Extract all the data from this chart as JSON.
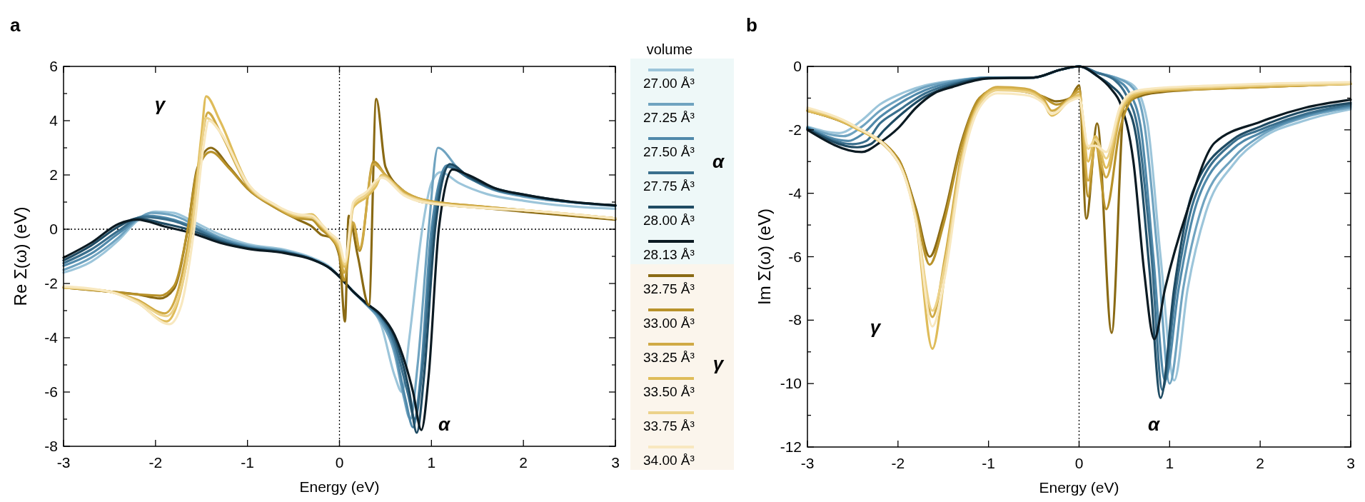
{
  "chart_data": [
    {
      "type": "line",
      "title": "a",
      "xlabel": "Energy (eV)",
      "ylabel": "Re Σ(ω) (eV)",
      "legend_title": "volume",
      "legend": "right",
      "line_style": "solid",
      "marker": "none",
      "grid": false,
      "xlim": [
        -3,
        3
      ],
      "xticks": [
        -3,
        -2,
        -1,
        0,
        1,
        2,
        3
      ],
      "ylim": [
        -8,
        6
      ],
      "yticks": [
        -8,
        {
          "value": -7,
          "label": null
        },
        -6,
        {
          "value": -5,
          "label": null
        },
        -4,
        {
          "value": -3,
          "label": null
        },
        -2,
        {
          "value": -1,
          "label": null
        },
        0,
        {
          "value": 1,
          "label": null
        },
        2,
        {
          "value": 3,
          "label": null
        },
        4,
        {
          "value": 5,
          "label": null
        },
        6
      ],
      "ref_lines": [
        {
          "axis": "x",
          "value": 0,
          "line_style": "dotted"
        },
        {
          "axis": "y",
          "value": 0,
          "line_style": "dotted"
        }
      ],
      "annotations": [
        "γ",
        "α",
        "α",
        "γ"
      ],
      "series": [
        {
          "name": "27.00 Å³",
          "color": "#9cc5da",
          "x": [
            -3,
            -2.7,
            -2.4,
            -2.2,
            -2.0,
            -1.8,
            -1.6,
            -1.3,
            -1.0,
            -0.6,
            -0.3,
            -0.1,
            0,
            0.15,
            0.3,
            0.45,
            0.6,
            0.68,
            0.76,
            0.9,
            1.0,
            1.1,
            1.3,
            1.6,
            2,
            2.5,
            3
          ],
          "values": [
            -1.6,
            -1.2,
            -0.4,
            0.3,
            0.65,
            0.6,
            0.3,
            -0.2,
            -0.55,
            -0.75,
            -1.05,
            -1.4,
            -1.75,
            -2.3,
            -2.8,
            -3.5,
            -5.4,
            -6.0,
            -4.0,
            0,
            1.7,
            2.1,
            1.7,
            1.3,
            1.05,
            0.85,
            0.75
          ]
        },
        {
          "name": "27.25 Å³",
          "color": "#6fa3c0",
          "x": [
            -3,
            -2.7,
            -2.4,
            -2.2,
            -2.05,
            -1.8,
            -1.6,
            -1.3,
            -1.0,
            -0.6,
            -0.3,
            -0.1,
            0,
            0.15,
            0.3,
            0.45,
            0.6,
            0.7,
            0.77,
            0.85,
            0.97,
            1.07,
            1.3,
            1.6,
            2,
            2.5,
            3
          ],
          "values": [
            -1.5,
            -1.05,
            -0.3,
            0.35,
            0.6,
            0.5,
            0.2,
            -0.3,
            -0.6,
            -0.8,
            -1.1,
            -1.45,
            -1.75,
            -2.3,
            -2.8,
            -3.4,
            -4.6,
            -6.2,
            -7.0,
            -5.0,
            0,
            3.0,
            2.2,
            1.55,
            1.2,
            1.0,
            0.85
          ]
        },
        {
          "name": "27.50 Å³",
          "color": "#5089aa",
          "x": [
            -3,
            -2.7,
            -2.4,
            -2.1,
            -1.8,
            -1.6,
            -1.3,
            -1.0,
            -0.6,
            -0.3,
            -0.1,
            0,
            0.15,
            0.3,
            0.45,
            0.6,
            0.72,
            0.8,
            0.88,
            1.0,
            1.17,
            1.4,
            1.7,
            2,
            2.5,
            3
          ],
          "values": [
            -1.35,
            -0.9,
            -0.15,
            0.5,
            0.35,
            0.1,
            -0.35,
            -0.65,
            -0.82,
            -1.1,
            -1.45,
            -1.75,
            -2.3,
            -2.8,
            -3.3,
            -4.4,
            -6.3,
            -7.3,
            -5.5,
            0,
            2.35,
            1.9,
            1.45,
            1.25,
            1.0,
            0.87
          ]
        },
        {
          "name": "27.75 Å³",
          "color": "#3a6f8d",
          "x": [
            -3,
            -2.7,
            -2.4,
            -2.15,
            -1.8,
            -1.6,
            -1.3,
            -1.0,
            -0.6,
            -0.3,
            -0.1,
            0,
            0.15,
            0.3,
            0.45,
            0.6,
            0.74,
            0.82,
            0.9,
            1.02,
            1.18,
            1.4,
            1.7,
            2,
            2.5,
            3
          ],
          "values": [
            -1.25,
            -0.75,
            -0.05,
            0.45,
            0.3,
            0.05,
            -0.4,
            -0.68,
            -0.84,
            -1.1,
            -1.45,
            -1.75,
            -2.3,
            -2.75,
            -3.2,
            -4.2,
            -6.0,
            -7.0,
            -5.2,
            0,
            2.3,
            1.9,
            1.45,
            1.25,
            1.0,
            0.87
          ]
        },
        {
          "name": "28.00 Å³",
          "color": "#1f4b63",
          "x": [
            -3,
            -2.7,
            -2.4,
            -2.2,
            -1.9,
            -1.6,
            -1.3,
            -1.0,
            -0.6,
            -0.3,
            -0.1,
            0,
            0.15,
            0.3,
            0.45,
            0.6,
            0.76,
            0.84,
            0.92,
            1.04,
            1.2,
            1.4,
            1.7,
            2,
            2.5,
            3
          ],
          "values": [
            -1.15,
            -0.6,
            0.1,
            0.4,
            0.2,
            -0.05,
            -0.45,
            -0.7,
            -0.86,
            -1.1,
            -1.45,
            -1.75,
            -2.3,
            -2.75,
            -3.2,
            -4.0,
            -6.0,
            -7.5,
            -5.4,
            0,
            2.4,
            1.95,
            1.5,
            1.28,
            1.02,
            0.88
          ]
        },
        {
          "name": "28.13 Å³",
          "color": "#0b1a22",
          "x": [
            -3,
            -2.7,
            -2.4,
            -2.2,
            -1.9,
            -1.6,
            -1.3,
            -1.0,
            -0.6,
            -0.3,
            -0.1,
            0,
            0.15,
            0.3,
            0.45,
            0.6,
            0.8,
            0.89,
            0.97,
            1.08,
            1.23,
            1.4,
            1.7,
            2,
            2.5,
            3
          ],
          "values": [
            -1.05,
            -0.5,
            0.2,
            0.35,
            0.1,
            -0.15,
            -0.5,
            -0.72,
            -0.88,
            -1.12,
            -1.45,
            -1.75,
            -2.3,
            -2.75,
            -3.15,
            -3.9,
            -6.0,
            -7.4,
            -5.4,
            0,
            2.2,
            2.0,
            1.5,
            1.28,
            1.02,
            0.88
          ]
        },
        {
          "name": "32.75 Å³",
          "color": "#8a6a14",
          "x": [
            -3,
            -2.5,
            -2.2,
            -1.95,
            -1.8,
            -1.65,
            -1.55,
            -1.4,
            -1.2,
            -1.0,
            -0.7,
            -0.45,
            -0.3,
            -0.2,
            -0.1,
            0,
            0.06,
            0.1,
            0.2,
            0.32,
            0.4,
            0.5,
            0.7,
            0.9,
            1.5,
            2,
            3
          ],
          "values": [
            -2.15,
            -2.3,
            -2.4,
            -2.55,
            -2.2,
            0,
            2.2,
            3.0,
            2.3,
            1.5,
            0.8,
            0.35,
            0.1,
            -0.2,
            -0.3,
            -1.0,
            -3.4,
            0.5,
            -1.0,
            -2.8,
            4.8,
            2.3,
            1.4,
            1.0,
            0.8,
            0.65,
            0.35
          ]
        },
        {
          "name": "33.00 Å³",
          "color": "#b8922a",
          "x": [
            -3,
            -2.5,
            -2.2,
            -1.95,
            -1.8,
            -1.65,
            -1.55,
            -1.4,
            -1.2,
            -1.0,
            -0.7,
            -0.45,
            -0.3,
            -0.2,
            -0.1,
            0,
            0.05,
            0.15,
            0.22,
            0.37,
            0.5,
            0.7,
            0.9,
            1.5,
            2,
            3
          ],
          "values": [
            -2.15,
            -2.3,
            -2.4,
            -2.45,
            -2.1,
            0,
            2.1,
            2.85,
            2.25,
            1.5,
            0.8,
            0.4,
            0.35,
            0.0,
            -0.3,
            -0.9,
            -1.9,
            0.2,
            -0.8,
            2.5,
            2.0,
            1.4,
            1.1,
            0.85,
            0.7,
            0.4
          ]
        },
        {
          "name": "33.25 Å³",
          "color": "#d0aa45",
          "x": [
            -3,
            -2.5,
            -2.2,
            -1.9,
            -1.75,
            -1.6,
            -1.5,
            -1.43,
            -1.3,
            -1.0,
            -0.7,
            -0.45,
            -0.3,
            -0.2,
            -0.1,
            0,
            0.05,
            0.15,
            0.22,
            0.37,
            0.5,
            0.7,
            0.9,
            1.5,
            2,
            3
          ],
          "values": [
            -2.15,
            -2.3,
            -2.6,
            -3.1,
            -2.2,
            0.5,
            3.2,
            4.3,
            3.6,
            1.6,
            0.85,
            0.45,
            0.45,
            0.1,
            -0.25,
            -0.8,
            -1.6,
            0.25,
            -0.7,
            2.4,
            2.0,
            1.4,
            1.1,
            0.85,
            0.7,
            0.4
          ]
        },
        {
          "name": "33.50 Å³",
          "color": "#dfbc5a",
          "x": [
            -3,
            -2.5,
            -2.2,
            -1.88,
            -1.75,
            -1.6,
            -1.5,
            -1.45,
            -1.3,
            -1.0,
            -0.7,
            -0.45,
            -0.3,
            -0.2,
            -0.1,
            0,
            0.06,
            0.15,
            0.3,
            0.4,
            0.46,
            0.7,
            0.9,
            1.5,
            2,
            3
          ],
          "values": [
            -2.15,
            -2.3,
            -2.7,
            -3.4,
            -2.6,
            0.2,
            3.5,
            4.9,
            4.0,
            1.7,
            0.9,
            0.5,
            0.55,
            0.2,
            -0.2,
            -0.7,
            -1.4,
            0.8,
            1.2,
            1.6,
            2.0,
            1.3,
            1.05,
            0.8,
            0.7,
            0.4
          ]
        },
        {
          "name": "33.75 Å³",
          "color": "#ecd28a",
          "x": [
            -3,
            -2.5,
            -2.2,
            -1.88,
            -1.75,
            -1.6,
            -1.5,
            -1.45,
            -1.3,
            -1.0,
            -0.7,
            -0.45,
            -0.3,
            -0.2,
            -0.1,
            0,
            0.06,
            0.15,
            0.3,
            0.4,
            0.46,
            0.7,
            0.9,
            1.5,
            2,
            3
          ],
          "values": [
            -2.15,
            -2.3,
            -2.65,
            -3.2,
            -2.5,
            0.1,
            3.1,
            4.1,
            3.6,
            1.65,
            0.88,
            0.5,
            0.45,
            0.15,
            -0.2,
            -0.6,
            -1.3,
            0.9,
            1.3,
            1.7,
            1.95,
            1.3,
            1.05,
            0.8,
            0.7,
            0.4
          ]
        },
        {
          "name": "34.00 Å³",
          "color": "#f8e8bf",
          "x": [
            -3,
            -2.5,
            -2.2,
            -1.85,
            -1.72,
            -1.58,
            -1.48,
            -1.42,
            -1.3,
            -1.0,
            -0.7,
            -0.45,
            -0.3,
            -0.2,
            -0.1,
            0,
            0.06,
            0.15,
            0.3,
            0.4,
            0.46,
            0.7,
            0.9,
            1.5,
            2,
            3
          ],
          "values": [
            -2.1,
            -2.3,
            -2.7,
            -3.5,
            -2.8,
            0,
            3.0,
            4.0,
            3.6,
            1.7,
            0.9,
            0.55,
            0.5,
            0.2,
            -0.15,
            -0.5,
            -1.2,
            1.0,
            1.4,
            1.8,
            1.9,
            1.25,
            1.0,
            0.8,
            0.7,
            0.4
          ]
        }
      ]
    },
    {
      "type": "line",
      "title": "b",
      "xlabel": "Energy (eV)",
      "ylabel": "Im Σ(ω) (eV)",
      "line_style": "solid",
      "marker": "none",
      "grid": false,
      "xlim": [
        -3,
        3
      ],
      "xticks": [
        -3,
        -2,
        -1,
        0,
        1,
        2,
        3
      ],
      "ylim": [
        -12,
        0
      ],
      "yticks": [
        -12,
        {
          "value": -11,
          "label": null
        },
        -10,
        {
          "value": -9,
          "label": null
        },
        -8,
        {
          "value": -7,
          "label": null
        },
        -6,
        {
          "value": -5,
          "label": null
        },
        -4,
        {
          "value": -3,
          "label": null
        },
        -2,
        {
          "value": -1,
          "label": null
        },
        0
      ],
      "ref_lines": [
        {
          "axis": "x",
          "value": 0,
          "line_style": "dotted"
        }
      ],
      "annotations": [
        "γ",
        "α"
      ],
      "series": [
        {
          "color": "#9cc5da",
          "x": [
            -3,
            -2.65,
            -2.4,
            -2.2,
            -2.0,
            -1.7,
            -1.4,
            -1.0,
            -0.5,
            -0.2,
            0,
            0.2,
            0.4,
            0.6,
            0.75,
            0.9,
            1.05,
            1.2,
            1.4,
            1.7,
            2,
            2.5,
            3
          ],
          "values": [
            -1.9,
            -2.1,
            -1.7,
            -1.2,
            -0.9,
            -0.6,
            -0.45,
            -0.35,
            -0.35,
            -0.1,
            0,
            -0.2,
            -0.35,
            -0.6,
            -1.7,
            -6.0,
            -9.9,
            -7.0,
            -4.6,
            -3.1,
            -2.3,
            -1.7,
            -1.35
          ]
        },
        {
          "color": "#6fa3c0",
          "x": [
            -3,
            -2.6,
            -2.4,
            -2.2,
            -2.0,
            -1.7,
            -1.4,
            -1.0,
            -0.5,
            -0.2,
            0,
            0.2,
            0.4,
            0.6,
            0.72,
            0.87,
            1.0,
            1.15,
            1.35,
            1.7,
            2,
            2.5,
            3
          ],
          "values": [
            -1.92,
            -2.2,
            -1.9,
            -1.4,
            -1.05,
            -0.65,
            -0.47,
            -0.35,
            -0.35,
            -0.1,
            0,
            -0.2,
            -0.35,
            -0.7,
            -1.8,
            -6.0,
            -10.0,
            -7.0,
            -4.5,
            -2.9,
            -2.2,
            -1.6,
            -1.3
          ]
        },
        {
          "color": "#5089aa",
          "x": [
            -3,
            -2.55,
            -2.4,
            -2.2,
            -2.0,
            -1.7,
            -1.4,
            -1.0,
            -0.5,
            -0.2,
            0,
            0.2,
            0.4,
            0.55,
            0.68,
            0.82,
            0.95,
            1.1,
            1.3,
            1.7,
            2,
            2.5,
            3
          ],
          "values": [
            -1.93,
            -2.35,
            -2.15,
            -1.6,
            -1.2,
            -0.75,
            -0.5,
            -0.35,
            -0.35,
            -0.1,
            0,
            -0.2,
            -0.4,
            -0.8,
            -1.9,
            -6.0,
            -9.9,
            -7.0,
            -4.3,
            -2.6,
            -2.1,
            -1.55,
            -1.25
          ]
        },
        {
          "color": "#3a6f8d",
          "x": [
            -3,
            -2.5,
            -2.35,
            -2.2,
            -2.0,
            -1.7,
            -1.4,
            -1.0,
            -0.5,
            -0.2,
            0,
            0.2,
            0.4,
            0.52,
            0.65,
            0.8,
            0.92,
            1.07,
            1.27,
            1.7,
            2,
            2.5,
            3
          ],
          "values": [
            -1.95,
            -2.45,
            -2.35,
            -1.8,
            -1.4,
            -0.85,
            -0.55,
            -0.36,
            -0.35,
            -0.1,
            0,
            -0.2,
            -0.45,
            -0.9,
            -2.0,
            -6.0,
            -10.2,
            -7.0,
            -4.2,
            -2.4,
            -2.0,
            -1.5,
            -1.2
          ]
        },
        {
          "color": "#1f4b63",
          "x": [
            -3,
            -2.45,
            -2.3,
            -2.15,
            -2.0,
            -1.7,
            -1.4,
            -1.0,
            -0.5,
            -0.2,
            0,
            0.2,
            0.35,
            0.5,
            0.63,
            0.78,
            0.9,
            1.05,
            1.25,
            1.7,
            2,
            2.5,
            3
          ],
          "values": [
            -1.97,
            -2.55,
            -2.45,
            -2.0,
            -1.6,
            -0.95,
            -0.6,
            -0.37,
            -0.35,
            -0.1,
            0,
            -0.3,
            -0.6,
            -1.1,
            -2.2,
            -6.5,
            -10.45,
            -7.0,
            -4.0,
            -2.3,
            -1.9,
            -1.4,
            -1.15
          ]
        },
        {
          "color": "#0b1a22",
          "x": [
            -3,
            -2.4,
            -2.2,
            -2.0,
            -1.8,
            -1.6,
            -1.4,
            -1.0,
            -0.5,
            -0.2,
            0,
            0.2,
            0.35,
            0.46,
            0.6,
            0.72,
            0.83,
            0.95,
            1.2,
            1.5,
            2,
            2.5,
            3
          ],
          "values": [
            -2.0,
            -2.7,
            -2.4,
            -1.95,
            -1.3,
            -0.85,
            -0.65,
            -0.38,
            -0.35,
            -0.1,
            0,
            -0.3,
            -0.7,
            -1.2,
            -3.0,
            -6.5,
            -8.6,
            -7.0,
            -4.5,
            -2.4,
            -1.75,
            -1.3,
            -1.05
          ]
        },
        {
          "color": "#8a6a14",
          "x": [
            -3,
            -2.5,
            -2.0,
            -1.8,
            -1.65,
            -1.5,
            -1.3,
            -1.1,
            -0.9,
            -0.6,
            -0.4,
            -0.25,
            -0.1,
            0,
            0.08,
            0.2,
            0.36,
            0.5,
            0.8,
            1.5,
            2,
            3
          ],
          "values": [
            -1.4,
            -1.9,
            -2.9,
            -4.5,
            -6.0,
            -4.8,
            -2.4,
            -1.0,
            -0.7,
            -0.8,
            -0.95,
            -1.1,
            -1.0,
            -0.6,
            -4.8,
            -1.8,
            -8.4,
            -1.2,
            -0.85,
            -0.7,
            -0.65,
            -0.55
          ]
        },
        {
          "color": "#b8922a",
          "x": [
            -3,
            -2.5,
            -2.0,
            -1.8,
            -1.65,
            -1.5,
            -1.3,
            -1.1,
            -0.9,
            -0.6,
            -0.4,
            -0.25,
            -0.1,
            0,
            0.1,
            0.18,
            0.3,
            0.45,
            0.6,
            0.8,
            1.5,
            2,
            3
          ],
          "values": [
            -1.4,
            -1.9,
            -2.9,
            -4.6,
            -6.25,
            -5.0,
            -2.5,
            -1.0,
            -0.7,
            -0.75,
            -0.95,
            -1.2,
            -1.0,
            -0.7,
            -4.1,
            -2.4,
            -4.5,
            -2.0,
            -1.0,
            -0.8,
            -0.7,
            -0.65,
            -0.55
          ]
        },
        {
          "color": "#d0aa45",
          "x": [
            -3,
            -2.5,
            -2.0,
            -1.8,
            -1.62,
            -1.48,
            -1.3,
            -1.1,
            -0.9,
            -0.6,
            -0.4,
            -0.3,
            -0.1,
            0,
            0.1,
            0.18,
            0.3,
            0.45,
            0.6,
            0.8,
            1.5,
            2,
            3
          ],
          "values": [
            -1.4,
            -1.9,
            -3.0,
            -4.8,
            -7.9,
            -6.0,
            -2.8,
            -1.1,
            -0.65,
            -0.7,
            -1.0,
            -1.4,
            -1.0,
            -0.8,
            -3.6,
            -2.5,
            -3.5,
            -1.6,
            -0.95,
            -0.8,
            -0.7,
            -0.65,
            -0.55
          ]
        },
        {
          "color": "#dfbc5a",
          "x": [
            -3,
            -2.5,
            -2.0,
            -1.8,
            -1.62,
            -1.48,
            -1.3,
            -1.1,
            -0.9,
            -0.6,
            -0.4,
            -0.3,
            -0.1,
            0,
            0.1,
            0.18,
            0.3,
            0.45,
            0.6,
            0.8,
            1.5,
            2,
            3
          ],
          "values": [
            -1.4,
            -1.9,
            -3.0,
            -4.9,
            -8.9,
            -6.5,
            -3.0,
            -1.15,
            -0.7,
            -0.75,
            -1.1,
            -1.55,
            -1.05,
            -0.9,
            -3.0,
            -2.2,
            -3.2,
            -1.5,
            -0.9,
            -0.75,
            -0.65,
            -0.6,
            -0.55
          ]
        },
        {
          "color": "#ecd28a",
          "x": [
            -3,
            -2.5,
            -2.0,
            -1.8,
            -1.62,
            -1.48,
            -1.3,
            -1.1,
            -0.9,
            -0.6,
            -0.4,
            -0.3,
            -0.1,
            0,
            0.1,
            0.18,
            0.3,
            0.45,
            0.6,
            0.8,
            1.5,
            2,
            3
          ],
          "values": [
            -1.35,
            -1.85,
            -3.0,
            -4.8,
            -7.7,
            -6.2,
            -3.0,
            -1.2,
            -0.75,
            -0.8,
            -1.1,
            -1.5,
            -1.05,
            -0.95,
            -2.6,
            -2.3,
            -2.9,
            -1.4,
            -0.85,
            -0.75,
            -0.65,
            -0.6,
            -0.55
          ]
        },
        {
          "color": "#f8e8bf",
          "x": [
            -3,
            -2.5,
            -2.0,
            -1.8,
            -1.62,
            -1.48,
            -1.3,
            -1.1,
            -0.9,
            -0.6,
            -0.4,
            -0.3,
            -0.1,
            0,
            0.1,
            0.18,
            0.3,
            0.45,
            0.6,
            0.8,
            1.5,
            2,
            3
          ],
          "values": [
            -1.3,
            -1.85,
            -3.0,
            -4.9,
            -8.2,
            -6.6,
            -3.2,
            -1.3,
            -0.85,
            -0.9,
            -1.15,
            -1.5,
            -1.1,
            -1.0,
            -2.5,
            -2.5,
            -2.7,
            -1.3,
            -0.8,
            -0.7,
            -0.6,
            -0.55,
            -0.5
          ]
        }
      ]
    }
  ]
}
